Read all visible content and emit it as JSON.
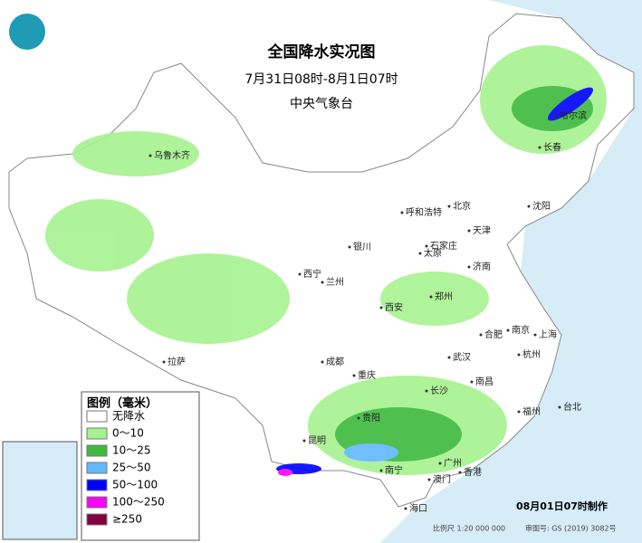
{
  "header": {
    "title": "全国降水实况图",
    "period": "7月31日08时-8月1日07时",
    "issuer": "中央气象台"
  },
  "legend": {
    "title": "图例（毫米）",
    "items": [
      {
        "label": "无降水",
        "color": "#ffffff"
      },
      {
        "label": "0～10",
        "color": "#a6f28f"
      },
      {
        "label": "10～25",
        "color": "#3dba3d"
      },
      {
        "label": "25～50",
        "color": "#61b8ff"
      },
      {
        "label": "50～100",
        "color": "#0000fe"
      },
      {
        "label": "100～250",
        "color": "#fa00fa"
      },
      {
        "label": "≥250",
        "color": "#800040"
      }
    ]
  },
  "cities": [
    "乌鲁木齐",
    "拉萨",
    "西宁",
    "兰州",
    "银川",
    "呼和浩特",
    "北京",
    "天津",
    "石家庄",
    "太原",
    "济南",
    "郑州",
    "西安",
    "成都",
    "重庆",
    "武汉",
    "合肥",
    "南京",
    "上海",
    "杭州",
    "长沙",
    "南昌",
    "福州",
    "台北",
    "贵阳",
    "昆明",
    "南宁",
    "广州",
    "香港",
    "澳门",
    "海口",
    "长春",
    "沈阳",
    "哈尔滨"
  ],
  "footer": {
    "made": "08月01日07时制作",
    "scale": "比例尺 1:20 000 000",
    "approval": "审图号: GS (2019) 3082号"
  }
}
